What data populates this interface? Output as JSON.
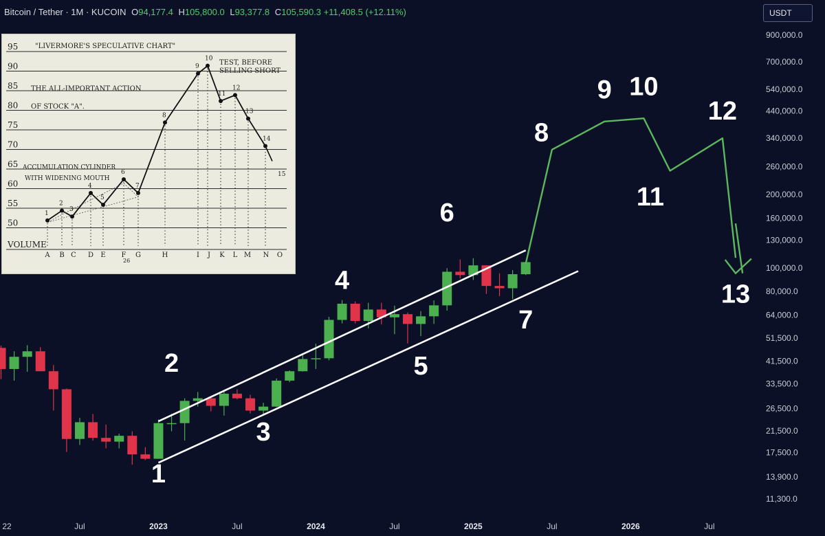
{
  "header": {
    "symbol": "Bitcoin / Tether · 1M · KUCOIN",
    "o_label": "O",
    "o_value": "94,177.4",
    "h_label": "H",
    "h_value": "105,800.0",
    "l_label": "L",
    "l_value": "93,377.8",
    "c_label": "C",
    "c_value": "105,590.3",
    "change": "+11,408.5 (+12.11%)"
  },
  "currency_button": "USDT",
  "colors": {
    "background": "#0b1027",
    "up": "#4caf50",
    "down": "#e0344a",
    "projection": "#5cb85c",
    "channel": "#ffffff"
  },
  "chart_data": {
    "type": "candlestick",
    "y_scale": "log",
    "y_ticks": [
      "900,000.0",
      "700,000.0",
      "540,000.0",
      "440,000.0",
      "340,000.0",
      "260,000.0",
      "200,000.0",
      "160,000.0",
      "130,000.0",
      "100,000.0",
      "80,000.0",
      "64,000.0",
      "51,500.0",
      "41,500.0",
      "33,500.0",
      "26,500.0",
      "21,500.0",
      "17,500.0",
      "13,900.0",
      "11,300.0"
    ],
    "y_tick_values": [
      900000,
      700000,
      540000,
      440000,
      340000,
      260000,
      200000,
      160000,
      130000,
      100000,
      80000,
      64000,
      51500,
      41500,
      33500,
      26500,
      21500,
      17500,
      13900,
      11300
    ],
    "x_ticks": [
      {
        "label": "22",
        "month": 0,
        "bold": false
      },
      {
        "label": "Jul",
        "month": 6,
        "bold": false
      },
      {
        "label": "2023",
        "month": 12,
        "bold": true
      },
      {
        "label": "Jul",
        "month": 18,
        "bold": false
      },
      {
        "label": "2024",
        "month": 24,
        "bold": true
      },
      {
        "label": "Jul",
        "month": 30,
        "bold": false
      },
      {
        "label": "2025",
        "month": 36,
        "bold": true
      },
      {
        "label": "Jul",
        "month": 42,
        "bold": false
      },
      {
        "label": "2026",
        "month": 48,
        "bold": true
      },
      {
        "label": "Jul",
        "month": 54,
        "bold": false
      }
    ],
    "candles": [
      {
        "m": 0,
        "o": 47000,
        "h": 48000,
        "l": 35000,
        "c": 38500
      },
      {
        "m": 1,
        "o": 38500,
        "h": 45500,
        "l": 34500,
        "c": 43200
      },
      {
        "m": 2,
        "o": 43200,
        "h": 48200,
        "l": 37500,
        "c": 45500
      },
      {
        "m": 3,
        "o": 45500,
        "h": 47300,
        "l": 37700,
        "c": 37700
      },
      {
        "m": 4,
        "o": 37700,
        "h": 40000,
        "l": 26000,
        "c": 31800
      },
      {
        "m": 5,
        "o": 31800,
        "h": 32000,
        "l": 17600,
        "c": 19900
      },
      {
        "m": 6,
        "o": 19900,
        "h": 24300,
        "l": 18800,
        "c": 23300
      },
      {
        "m": 7,
        "o": 23300,
        "h": 25200,
        "l": 19600,
        "c": 20100
      },
      {
        "m": 8,
        "o": 20100,
        "h": 22800,
        "l": 18200,
        "c": 19400
      },
      {
        "m": 9,
        "o": 19400,
        "h": 20900,
        "l": 18200,
        "c": 20500
      },
      {
        "m": 10,
        "o": 20500,
        "h": 21400,
        "l": 15600,
        "c": 17200
      },
      {
        "m": 11,
        "o": 17200,
        "h": 18400,
        "l": 16300,
        "c": 16500
      },
      {
        "m": 12,
        "o": 16500,
        "h": 23900,
        "l": 16500,
        "c": 23100
      },
      {
        "m": 13,
        "o": 23100,
        "h": 25200,
        "l": 21400,
        "c": 23100
      },
      {
        "m": 14,
        "o": 23100,
        "h": 29200,
        "l": 19600,
        "c": 28500
      },
      {
        "m": 15,
        "o": 28500,
        "h": 31000,
        "l": 27000,
        "c": 29200
      },
      {
        "m": 16,
        "o": 29200,
        "h": 29800,
        "l": 25800,
        "c": 27200
      },
      {
        "m": 17,
        "o": 27200,
        "h": 31400,
        "l": 24800,
        "c": 30500
      },
      {
        "m": 18,
        "o": 30500,
        "h": 31800,
        "l": 28900,
        "c": 29200
      },
      {
        "m": 19,
        "o": 29200,
        "h": 30200,
        "l": 25300,
        "c": 26000
      },
      {
        "m": 20,
        "o": 26000,
        "h": 28000,
        "l": 24900,
        "c": 27000
      },
      {
        "m": 21,
        "o": 27000,
        "h": 35200,
        "l": 26900,
        "c": 34500
      },
      {
        "m": 22,
        "o": 34500,
        "h": 38000,
        "l": 34000,
        "c": 37700
      },
      {
        "m": 23,
        "o": 37700,
        "h": 44700,
        "l": 37600,
        "c": 42300
      },
      {
        "m": 24,
        "o": 42300,
        "h": 48900,
        "l": 38500,
        "c": 42600
      },
      {
        "m": 25,
        "o": 42600,
        "h": 63000,
        "l": 41800,
        "c": 61200
      },
      {
        "m": 26,
        "o": 61200,
        "h": 73800,
        "l": 59200,
        "c": 71300
      },
      {
        "m": 27,
        "o": 71300,
        "h": 72800,
        "l": 59200,
        "c": 60600
      },
      {
        "m": 28,
        "o": 60600,
        "h": 71900,
        "l": 56500,
        "c": 67500
      },
      {
        "m": 29,
        "o": 67500,
        "h": 71900,
        "l": 58600,
        "c": 62700
      },
      {
        "m": 30,
        "o": 62700,
        "h": 70000,
        "l": 53500,
        "c": 64600
      },
      {
        "m": 31,
        "o": 64600,
        "h": 65600,
        "l": 49000,
        "c": 58900
      },
      {
        "m": 32,
        "o": 58900,
        "h": 66500,
        "l": 52500,
        "c": 63300
      },
      {
        "m": 33,
        "o": 63300,
        "h": 73600,
        "l": 58900,
        "c": 70200
      },
      {
        "m": 34,
        "o": 70200,
        "h": 99800,
        "l": 66800,
        "c": 96400
      },
      {
        "m": 35,
        "o": 96400,
        "h": 108300,
        "l": 90500,
        "c": 93400
      },
      {
        "m": 36,
        "o": 93400,
        "h": 109600,
        "l": 89200,
        "c": 102400
      },
      {
        "m": 37,
        "o": 102400,
        "h": 102500,
        "l": 78200,
        "c": 84300
      },
      {
        "m": 38,
        "o": 84300,
        "h": 95000,
        "l": 76600,
        "c": 82500
      },
      {
        "m": 39,
        "o": 82500,
        "h": 97900,
        "l": 74400,
        "c": 94200
      },
      {
        "m": 40,
        "o": 94177.4,
        "h": 105800,
        "l": 93377.8,
        "c": 105590.3
      }
    ],
    "channel_lines": [
      {
        "name": "upper",
        "from": {
          "m": 12,
          "v": 23500
        },
        "to": {
          "m": 40,
          "v": 118000
        }
      },
      {
        "name": "lower",
        "from": {
          "m": 12,
          "v": 15900
        },
        "to": {
          "m": 44,
          "v": 97000
        }
      }
    ],
    "projection_path": [
      {
        "m": 40,
        "v": 104000
      },
      {
        "m": 42,
        "v": 305000
      },
      {
        "m": 46,
        "v": 398000
      },
      {
        "m": 49,
        "v": 410000
      },
      {
        "m": 51,
        "v": 250000
      },
      {
        "m": 55,
        "v": 340000
      },
      {
        "m": 56,
        "v": 110000
      },
      {
        "m": 57,
        "v": 95000
      }
    ],
    "projection_arrow": [
      {
        "m": 55.2,
        "v": 108000
      },
      {
        "m": 56,
        "v": 95000
      },
      {
        "m": 57.2,
        "v": 109000
      }
    ],
    "wave_labels": [
      {
        "text": "1",
        "m": 12,
        "v": 13200
      },
      {
        "text": "2",
        "m": 13,
        "v": 37500
      },
      {
        "text": "3",
        "m": 20,
        "v": 19600
      },
      {
        "text": "4",
        "m": 26,
        "v": 82000
      },
      {
        "text": "5",
        "m": 32,
        "v": 36500
      },
      {
        "text": "6",
        "m": 34,
        "v": 155000
      },
      {
        "text": "7",
        "m": 40,
        "v": 56500
      },
      {
        "text": "8",
        "m": 41.2,
        "v": 330000
      },
      {
        "text": "9",
        "m": 46,
        "v": 495000
      },
      {
        "text": "10",
        "m": 49,
        "v": 510000
      },
      {
        "text": "11",
        "m": 49.5,
        "v": 180000
      },
      {
        "text": "12",
        "m": 55,
        "v": 405000
      },
      {
        "text": "13",
        "m": 56,
        "v": 72000
      }
    ]
  },
  "inset": {
    "title": "\"LIVERMORE'S SPECULATIVE CHART\"",
    "subtitle_line1": "THE ALL-IMPORTANT ACTION",
    "subtitle_line2": "OF STOCK \"A\".",
    "note_line1": "TEST, BEFORE",
    "note_line2": "SELLING SHORT",
    "cyl_line1": "ACCUMULATION CYLINDER",
    "cyl_line2": "WITH WIDENING MOUTH",
    "volume_label": "VOLUME",
    "page_number": "26",
    "y_labels": [
      "95",
      "90",
      "85",
      "80",
      "75",
      "70",
      "65",
      "60",
      "55",
      "50"
    ],
    "x_letters": [
      "A",
      "B",
      "C",
      "D",
      "E",
      "F",
      "G",
      "H",
      "I",
      "J",
      "K",
      "L",
      "M",
      "N",
      "O"
    ],
    "points": [
      {
        "n": "1",
        "x": 1,
        "y": 51
      },
      {
        "n": "2",
        "x": 2,
        "y": 53.5
      },
      {
        "n": "3",
        "x": 3,
        "y": 52
      },
      {
        "n": "4",
        "x": 4.5,
        "y": 58
      },
      {
        "n": "5",
        "x": 5.5,
        "y": 55
      },
      {
        "n": "6",
        "x": 7,
        "y": 61.5
      },
      {
        "n": "7",
        "x": 8,
        "y": 58
      },
      {
        "n": "8",
        "x": 9.5,
        "y": 76
      },
      {
        "n": "9",
        "x": 11,
        "y": 88.5
      },
      {
        "n": "10",
        "x": 11.7,
        "y": 90.5
      },
      {
        "n": "11",
        "x": 12.3,
        "y": 81.5
      },
      {
        "n": "12",
        "x": 13,
        "y": 83
      },
      {
        "n": "13",
        "x": 14,
        "y": 77
      },
      {
        "n": "14",
        "x": 14.8,
        "y": 70
      },
      {
        "n": "15",
        "x": 15.6,
        "y": 61
      }
    ]
  }
}
